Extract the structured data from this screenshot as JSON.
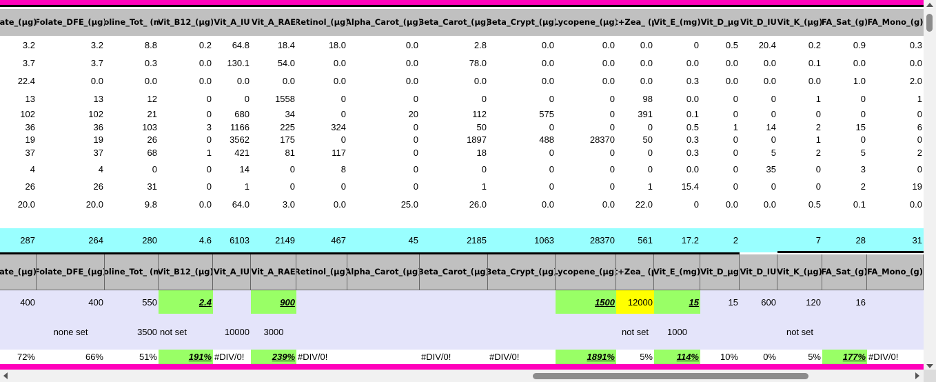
{
  "columns": [
    "ate_(µg)",
    "Folate_DFE_(µg)",
    "Choline_Tot_ (mg)",
    "Vit_B12_(µg)",
    "Vit_A_IU",
    "Vit_A_RAE",
    "Retinol_(µg)",
    "Alpha_Carot_(µg)",
    "Beta_Carot_(µg)",
    "Beta_Crypt_(µg)",
    "Lycopene_(µg)",
    "Lut+Zea_ (µg)",
    "Vit_E_(mg)",
    "Vit_D_µg",
    "Vit_D_IU",
    "Vit_K_(µg)",
    "FA_Sat_(g)",
    "FA_Mono_(g)"
  ],
  "data_rows": [
    [
      "3.2",
      "3.2",
      "8.8",
      "0.2",
      "64.8",
      "18.4",
      "18.0",
      "0.0",
      "2.8",
      "0.0",
      "0.0",
      "0.0",
      "0",
      "0.5",
      "20.4",
      "0.2",
      "0.9",
      "0.3"
    ],
    [
      "3.7",
      "3.7",
      "0.3",
      "0.0",
      "130.1",
      "54.0",
      "0.0",
      "0.0",
      "78.0",
      "0.0",
      "0.0",
      "0.0",
      "0.0",
      "0.0",
      "0.0",
      "0.1",
      "0.0",
      "0.0"
    ],
    [
      "22.4",
      "0.0",
      "0.0",
      "0.0",
      "0.0",
      "0.0",
      "0.0",
      "0.0",
      "0.0",
      "0.0",
      "0.0",
      "0.0",
      "0.3",
      "0.0",
      "0.0",
      "0.0",
      "1.0",
      "2.0"
    ],
    [
      "13",
      "13",
      "12",
      "0",
      "0",
      "1558",
      "0",
      "0",
      "0",
      "0",
      "0",
      "98",
      "0.0",
      "0",
      "0",
      "1",
      "0",
      "1"
    ],
    [
      "102",
      "102",
      "21",
      "0",
      "680",
      "34",
      "0",
      "20",
      "112",
      "575",
      "0",
      "391",
      "0.1",
      "0",
      "0",
      "0",
      "0",
      "0"
    ],
    [
      "36",
      "36",
      "103",
      "3",
      "1166",
      "225",
      "324",
      "0",
      "50",
      "0",
      "0",
      "0",
      "0.5",
      "1",
      "14",
      "2",
      "15",
      "6"
    ],
    [
      "19",
      "19",
      "26",
      "0",
      "3562",
      "175",
      "0",
      "0",
      "1897",
      "488",
      "28370",
      "50",
      "0.3",
      "0",
      "0",
      "1",
      "0",
      "0"
    ],
    [
      "37",
      "37",
      "68",
      "1",
      "421",
      "81",
      "117",
      "0",
      "18",
      "0",
      "0",
      "0",
      "0.3",
      "0",
      "5",
      "2",
      "5",
      "2"
    ],
    [
      "4",
      "4",
      "0",
      "0",
      "14",
      "0",
      "8",
      "0",
      "0",
      "0",
      "0",
      "0",
      "0.0",
      "0",
      "35",
      "0",
      "3",
      "0"
    ],
    [
      "26",
      "26",
      "31",
      "0",
      "1",
      "0",
      "0",
      "0",
      "1",
      "0",
      "0",
      "1",
      "15.4",
      "0",
      "0",
      "0",
      "2",
      "19"
    ],
    [
      "20.0",
      "20.0",
      "9.8",
      "0.0",
      "64.0",
      "3.0",
      "0.0",
      "25.0",
      "26.0",
      "0.0",
      "0.0",
      "22.0",
      "0",
      "0.0",
      "0.0",
      "0.5",
      "0.1",
      "0.0"
    ]
  ],
  "totals": [
    "287",
    "264",
    "280",
    "4.6",
    "6103",
    "2149",
    "467",
    "45",
    "2185",
    "1063",
    "28370",
    "561",
    "17.2",
    "2",
    "",
    "7",
    "28",
    "31"
  ],
  "rdi": [
    "400",
    "400",
    "550",
    "2.4",
    "",
    "900",
    "",
    "",
    "",
    "",
    "1500",
    "12000",
    "15",
    "15",
    "600",
    "120",
    "16",
    ""
  ],
  "limits": {
    "none_set": "none set",
    "choline_max": "3500",
    "b12_max": "not set",
    "vit_a_iu_max": "10000",
    "vit_a_rae_max": "3000",
    "lutzea_max": "not set",
    "vit_e_max": "1000",
    "vit_k_max": "not set"
  },
  "percent": [
    "72%",
    "66%",
    "51%",
    "191%",
    "#DIV/0!",
    "239%",
    "#DIV/0!",
    "",
    "#DIV/0!",
    "#DIV/0!",
    "1891%",
    "5%",
    "114%",
    "10%",
    "0%",
    "5%",
    "177%",
    "#DIV/0!"
  ],
  "colors": {
    "magenta": "#ff00bb",
    "header": "#c0c0c0",
    "totals": "#99ffff",
    "highlight_green": "#99ff66",
    "highlight_yellow": "#ffff00",
    "rdi_background": "#e4e4fa"
  }
}
